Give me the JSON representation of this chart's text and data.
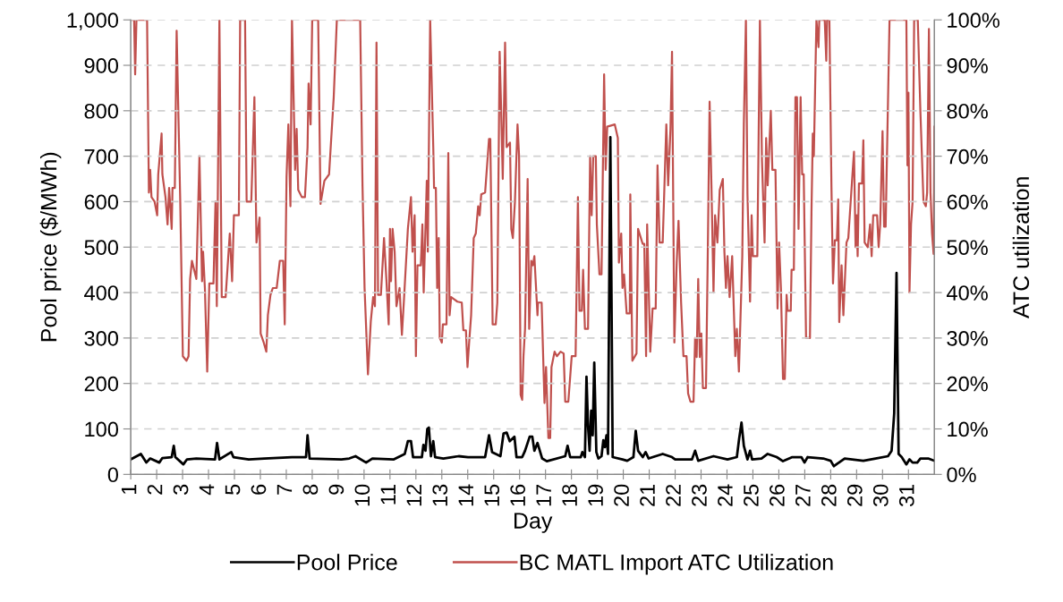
{
  "chart_data": {
    "type": "line",
    "xlabel": "Day",
    "ylabel": "Pool price ($/MWh)",
    "y2label": "ATC utilization",
    "xlim": [
      1,
      32
    ],
    "xticks": [
      1,
      2,
      3,
      4,
      5,
      6,
      7,
      8,
      9,
      10,
      11,
      12,
      13,
      14,
      15,
      16,
      17,
      18,
      19,
      20,
      21,
      22,
      23,
      24,
      25,
      26,
      27,
      28,
      29,
      30,
      31
    ],
    "ylim": [
      0,
      1000
    ],
    "yticks": [
      0,
      100,
      200,
      300,
      400,
      500,
      600,
      700,
      800,
      900,
      {
        "value": 1000,
        "label": "1,000"
      }
    ],
    "y2lim": [
      0,
      100
    ],
    "y2ticks": [
      {
        "value": 0,
        "label": "0%"
      },
      {
        "value": 10,
        "label": "10%"
      },
      {
        "value": 20,
        "label": "20%"
      },
      {
        "value": 30,
        "label": "30%"
      },
      {
        "value": 40,
        "label": "40%"
      },
      {
        "value": 50,
        "label": "50%"
      },
      {
        "value": 60,
        "label": "60%"
      },
      {
        "value": 70,
        "label": "70%"
      },
      {
        "value": 80,
        "label": "80%"
      },
      {
        "value": 90,
        "label": "90%"
      },
      {
        "value": 100,
        "label": "100%"
      }
    ],
    "grid": "y",
    "legend": "bottom",
    "marker": "none",
    "line_style": "solid",
    "series": [
      {
        "name": "Pool Price",
        "color": "#000000",
        "x": [
          1.0,
          1.39,
          1.6,
          1.75,
          2.1,
          2.22,
          2.58,
          2.66,
          2.72,
          3.03,
          3.17,
          3.53,
          4.25,
          4.33,
          4.42,
          4.88,
          4.96,
          5.55,
          6.15,
          7.22,
          7.76,
          7.82,
          7.9,
          9.13,
          9.43,
          9.67,
          10.08,
          10.32,
          11.15,
          11.57,
          11.69,
          11.81,
          11.89,
          12.23,
          12.29,
          12.37,
          12.44,
          12.5,
          12.58,
          12.67,
          12.74,
          13.06,
          13.65,
          14.01,
          14.67,
          14.82,
          14.94,
          15.26,
          15.38,
          15.5,
          15.62,
          15.8,
          15.88,
          16.1,
          16.21,
          16.39,
          16.49,
          16.57,
          16.69,
          16.87,
          17.05,
          17.76,
          17.85,
          17.95,
          18.36,
          18.42,
          18.52,
          18.58,
          18.64,
          18.7,
          18.76,
          18.82,
          18.88,
          18.96,
          19.04,
          19.16,
          19.23,
          19.29,
          19.35,
          19.41,
          19.5,
          19.59,
          19.97,
          20.15,
          20.39,
          20.48,
          20.57,
          20.75,
          20.86,
          20.98,
          21.52,
          21.88,
          22.0,
          22.65,
          22.77,
          22.89,
          23.48,
          24.02,
          24.38,
          24.47,
          24.56,
          24.65,
          24.79,
          24.89,
          24.97,
          25.33,
          25.57,
          25.92,
          26.16,
          26.52,
          26.87,
          26.99,
          27.11,
          27.71,
          28.0,
          28.12,
          28.54,
          29.26,
          29.73,
          30.21,
          30.35,
          30.45,
          30.54,
          30.62,
          30.74,
          30.92,
          31.04,
          31.16,
          31.34,
          31.46,
          31.76,
          32.0
        ],
        "values": [
          33,
          45,
          26,
          35,
          26,
          36,
          38,
          63,
          38,
          22,
          33,
          35,
          33,
          69,
          33,
          49,
          38,
          33,
          35,
          38,
          38,
          86,
          35,
          33,
          35,
          40,
          26,
          35,
          33,
          45,
          73,
          73,
          38,
          38,
          65,
          52,
          100,
          103,
          40,
          73,
          38,
          35,
          40,
          38,
          38,
          86,
          49,
          40,
          90,
          92,
          73,
          83,
          38,
          38,
          52,
          83,
          83,
          52,
          69,
          35,
          29,
          40,
          63,
          38,
          38,
          49,
          38,
          215,
          106,
          52,
          140,
          86,
          246,
          49,
          35,
          40,
          75,
          60,
          86,
          45,
          742,
          38,
          33,
          30,
          38,
          96,
          52,
          38,
          49,
          35,
          45,
          38,
          33,
          33,
          52,
          30,
          40,
          33,
          38,
          79,
          114,
          63,
          33,
          52,
          33,
          35,
          45,
          38,
          29,
          38,
          38,
          26,
          38,
          35,
          30,
          18,
          35,
          30,
          35,
          40,
          52,
          134,
          443,
          45,
          38,
          22,
          33,
          26,
          26,
          35,
          35,
          30
        ]
      },
      {
        "name": "BC MATL Import ATC Utilization",
        "color": "#c0504d",
        "axis": "y2",
        "x": [
          1.0,
          1.13,
          1.17,
          1.22,
          1.63,
          1.7,
          1.75,
          1.8,
          1.92,
          2.02,
          2.06,
          2.19,
          2.22,
          2.34,
          2.42,
          2.48,
          2.58,
          2.61,
          2.7,
          2.77,
          2.91,
          3.01,
          3.15,
          3.23,
          3.29,
          3.36,
          3.53,
          3.65,
          3.75,
          3.79,
          3.86,
          3.95,
          4.03,
          4.19,
          4.27,
          4.32,
          4.42,
          4.51,
          4.66,
          4.82,
          4.91,
          4.98,
          5.17,
          5.22,
          5.41,
          5.47,
          5.65,
          5.77,
          5.85,
          5.97,
          6.01,
          6.13,
          6.23,
          6.29,
          6.39,
          6.48,
          6.63,
          6.75,
          6.88,
          6.94,
          7.01,
          7.08,
          7.16,
          7.22,
          7.34,
          7.4,
          7.46,
          7.6,
          7.72,
          7.82,
          7.86,
          7.94,
          8.0,
          8.23,
          8.32,
          8.47,
          8.65,
          8.83,
          8.95,
          9.85,
          9.94,
          10.02,
          10.15,
          10.26,
          10.35,
          10.42,
          10.48,
          10.54,
          10.65,
          10.77,
          10.86,
          10.95,
          11.0,
          11.04,
          11.1,
          11.18,
          11.25,
          11.37,
          11.46,
          11.54,
          11.69,
          11.81,
          11.87,
          11.95,
          12.0,
          12.06,
          12.19,
          12.25,
          12.3,
          12.42,
          12.46,
          12.55,
          12.67,
          12.7,
          12.77,
          12.82,
          12.88,
          12.92,
          13.0,
          13.04,
          13.18,
          13.25,
          13.3,
          13.36,
          13.6,
          13.77,
          13.83,
          13.93,
          13.99,
          14.05,
          14.13,
          14.23,
          14.31,
          14.4,
          14.46,
          14.52,
          14.67,
          14.82,
          14.87,
          14.96,
          15.08,
          15.14,
          15.23,
          15.29,
          15.35,
          15.44,
          15.5,
          15.63,
          15.68,
          15.74,
          15.82,
          15.92,
          15.98,
          16.04,
          16.1,
          16.15,
          16.21,
          16.31,
          16.37,
          16.45,
          16.51,
          16.57,
          16.69,
          16.71,
          16.85,
          16.96,
          17.02,
          17.11,
          17.18,
          17.23,
          17.35,
          17.44,
          17.58,
          17.7,
          17.76,
          17.88,
          18.01,
          18.16,
          18.25,
          18.31,
          18.4,
          18.45,
          18.52,
          18.64,
          18.72,
          18.78,
          18.84,
          18.94,
          18.98,
          19.08,
          19.16,
          19.26,
          19.32,
          19.38,
          19.67,
          19.79,
          19.83,
          19.92,
          19.97,
          20.03,
          20.13,
          20.25,
          20.27,
          20.35,
          20.51,
          20.57,
          20.75,
          20.81,
          20.88,
          20.92,
          21.04,
          21.13,
          21.25,
          21.32,
          21.4,
          21.52,
          21.66,
          21.73,
          21.82,
          21.88,
          21.97,
          22.06,
          22.13,
          22.23,
          22.32,
          22.44,
          22.5,
          22.59,
          22.71,
          22.77,
          22.83,
          22.89,
          22.95,
          23.01,
          23.07,
          23.19,
          23.25,
          23.33,
          23.4,
          23.48,
          23.54,
          23.63,
          23.72,
          23.84,
          23.9,
          23.96,
          24.02,
          24.1,
          24.2,
          24.32,
          24.38,
          24.46,
          24.59,
          24.65,
          24.73,
          24.79,
          24.89,
          24.95,
          25.0,
          25.17,
          25.27,
          25.35,
          25.45,
          25.51,
          25.57,
          25.69,
          25.75,
          25.87,
          25.95,
          26.01,
          26.08,
          26.16,
          26.23,
          26.3,
          26.34,
          26.46,
          26.49,
          26.58,
          26.64,
          26.7,
          26.76,
          26.84,
          26.9,
          26.96,
          27.05,
          27.2,
          27.26,
          27.31,
          27.35,
          27.45,
          27.53,
          27.56,
          27.77,
          27.83,
          27.86,
          27.95,
          28.03,
          28.09,
          28.16,
          28.24,
          28.29,
          28.33,
          28.42,
          28.49,
          28.61,
          28.68,
          28.84,
          28.9,
          28.96,
          29.0,
          29.04,
          29.09,
          29.21,
          29.26,
          29.31,
          29.43,
          29.52,
          29.58,
          29.64,
          29.79,
          29.85,
          29.91,
          30.0,
          30.06,
          30.12,
          30.27,
          30.92,
          30.96,
          31.0,
          31.04,
          31.1,
          31.16,
          31.22,
          31.36,
          31.46,
          31.58,
          31.67,
          31.72,
          31.79,
          31.85,
          31.91,
          31.97,
          32.0
        ],
        "values": [
          100,
          100,
          88,
          100,
          100,
          62,
          67,
          61,
          60,
          57,
          66,
          75,
          66,
          61,
          55,
          63,
          54,
          63,
          63,
          97.6,
          60,
          26,
          25,
          26,
          43,
          47,
          43,
          70,
          42.5,
          49,
          41,
          22.6,
          42,
          42,
          60,
          37,
          100,
          39,
          39,
          53,
          42.5,
          57,
          57,
          100,
          100,
          60,
          60,
          83,
          51,
          56.5,
          31,
          29,
          27,
          35,
          39.5,
          41,
          41,
          47,
          47,
          33,
          65.5,
          77,
          59,
          100,
          67,
          76,
          62.6,
          61,
          61,
          72,
          86,
          77,
          100,
          100,
          59.5,
          64.6,
          66,
          83,
          100,
          100,
          63.6,
          41,
          22,
          33.7,
          39,
          37,
          95,
          39.5,
          39.5,
          52,
          43,
          33,
          54,
          42.5,
          54,
          49,
          37,
          41,
          30.7,
          38.5,
          54,
          61,
          49,
          57,
          26,
          46,
          46,
          55,
          40,
          64.6,
          49,
          100,
          72,
          63,
          63,
          41,
          52,
          30,
          29,
          33,
          33,
          70.7,
          35,
          39,
          38,
          37.8,
          31.7,
          31.7,
          23.6,
          28.7,
          35,
          52,
          53,
          59,
          57,
          61.6,
          62,
          73.8,
          73.8,
          33,
          33,
          37.8,
          93,
          80,
          65,
          95,
          72,
          73,
          54,
          52,
          60,
          77,
          70,
          17.5,
          16.4,
          26,
          32,
          65,
          32,
          47,
          46,
          48,
          35,
          37.8,
          37.8,
          15.7,
          23.6,
          8,
          8,
          23.6,
          27,
          26,
          27,
          26.6,
          16,
          16,
          26,
          26,
          61,
          36,
          36,
          45,
          32,
          32,
          70,
          57,
          70,
          70,
          55,
          44,
          44,
          88,
          67,
          76.5,
          77,
          74,
          46.6,
          53,
          41,
          44,
          35.4,
          35.4,
          61.6,
          25,
          26.6,
          54,
          50.7,
          50.7,
          26,
          55,
          27,
          36.5,
          36.5,
          68,
          51,
          51,
          77,
          63.6,
          76,
          93,
          29,
          46.6,
          55.8,
          37.8,
          26,
          26,
          17.8,
          16,
          16,
          30,
          25.8,
          43,
          25.8,
          31,
          19,
          19,
          44.6,
          82,
          63.6,
          40,
          57,
          51,
          62.6,
          65,
          49,
          41,
          48,
          39,
          48,
          26,
          32,
          22.6,
          48,
          77,
          100,
          61.6,
          38,
          57,
          48,
          48,
          100,
          69,
          51,
          74,
          63.6,
          80,
          67,
          67,
          36.5,
          51,
          41,
          21,
          21,
          39.5,
          36,
          36,
          45,
          45,
          83,
          83,
          54,
          83,
          66,
          66,
          30,
          30,
          58,
          75,
          70,
          100,
          94,
          100,
          100,
          91,
          100,
          100,
          63,
          42,
          51.5,
          51.5,
          60.5,
          33.5,
          46,
          35,
          51,
          52,
          66,
          71,
          50,
          57,
          48,
          64,
          64,
          73.5,
          51,
          50,
          55,
          48,
          57,
          57,
          50,
          55,
          75.5,
          54.5,
          54.5,
          100,
          100,
          68,
          84,
          40,
          55,
          60,
          100,
          100,
          80,
          60,
          59,
          62,
          98,
          62,
          53,
          48.5,
          76.5
        ]
      }
    ]
  }
}
